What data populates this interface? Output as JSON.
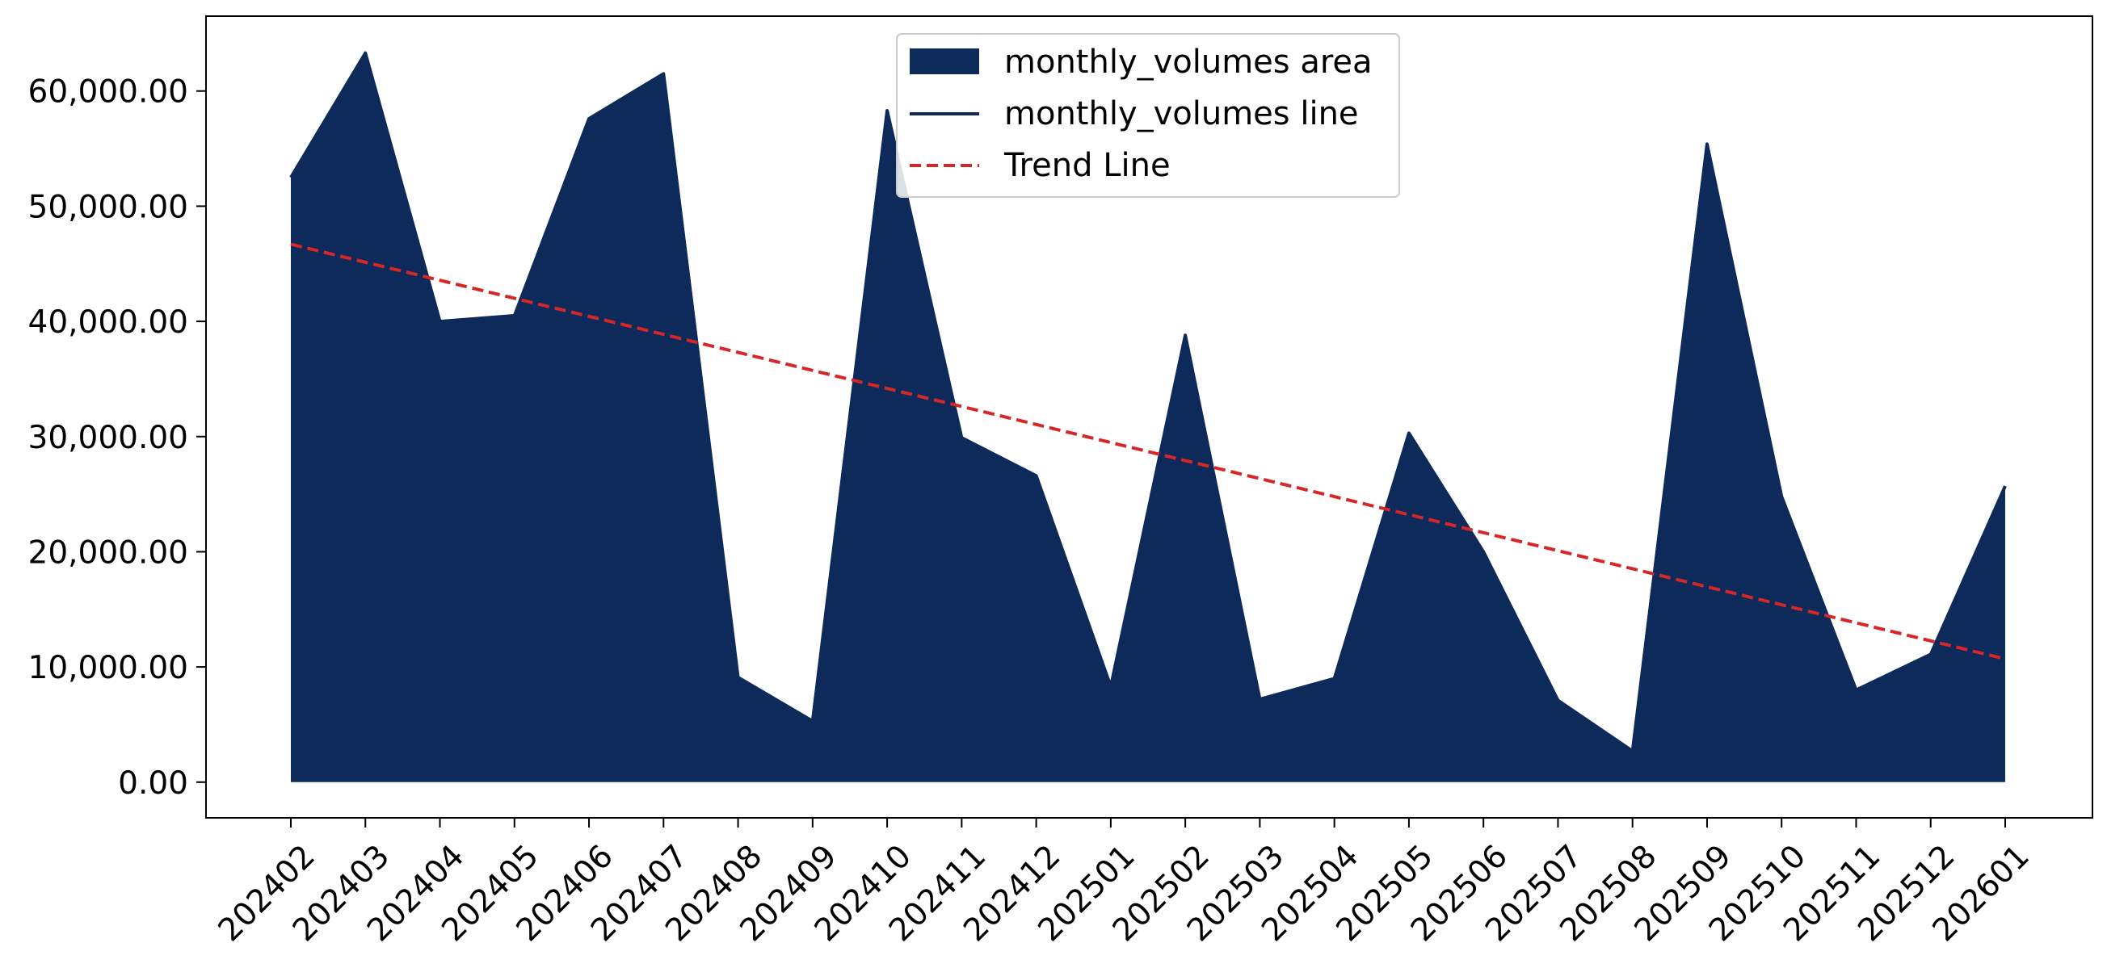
{
  "chart_data": {
    "type": "area",
    "title": "",
    "xlabel": "",
    "ylabel": "",
    "categories": [
      "202402",
      "202403",
      "202404",
      "202405",
      "202406",
      "202407",
      "202408",
      "202409",
      "202410",
      "202411",
      "202412",
      "202501",
      "202502",
      "202503",
      "202504",
      "202505",
      "202506",
      "202507",
      "202508",
      "202509",
      "202510",
      "202511",
      "202512",
      "202601"
    ],
    "series": [
      {
        "name": "monthly_volumes area",
        "kind": "area",
        "color": "#0e2a5b",
        "values": [
          52500,
          63300,
          40000,
          40500,
          57600,
          61500,
          9100,
          5300,
          58300,
          29900,
          26600,
          8300,
          38800,
          7200,
          9000,
          30300,
          20000,
          7100,
          2700,
          55400,
          24800,
          8000,
          11100,
          25700
        ]
      },
      {
        "name": "monthly_volumes line",
        "kind": "line",
        "color": "#0e2a5b",
        "values": [
          52500,
          63300,
          40000,
          40500,
          57600,
          61500,
          9100,
          5300,
          58300,
          29900,
          26600,
          8300,
          38800,
          7200,
          9000,
          30300,
          20000,
          7100,
          2700,
          55400,
          24800,
          8000,
          11100,
          25700
        ]
      },
      {
        "name": "Trend Line",
        "kind": "line",
        "style": "dashed",
        "color": "#d62728",
        "start": 46700,
        "end": 10700
      }
    ],
    "y_ticks": [
      "0.00",
      "10,000.00",
      "20,000.00",
      "30,000.00",
      "40,000.00",
      "50,000.00",
      "60,000.00"
    ],
    "y_tick_values": [
      0,
      10000,
      20000,
      30000,
      40000,
      50000,
      60000
    ],
    "ylim": [
      -3100,
      66500
    ],
    "x_tick_rotation": 45,
    "grid": false,
    "legend_position": "top-center"
  }
}
